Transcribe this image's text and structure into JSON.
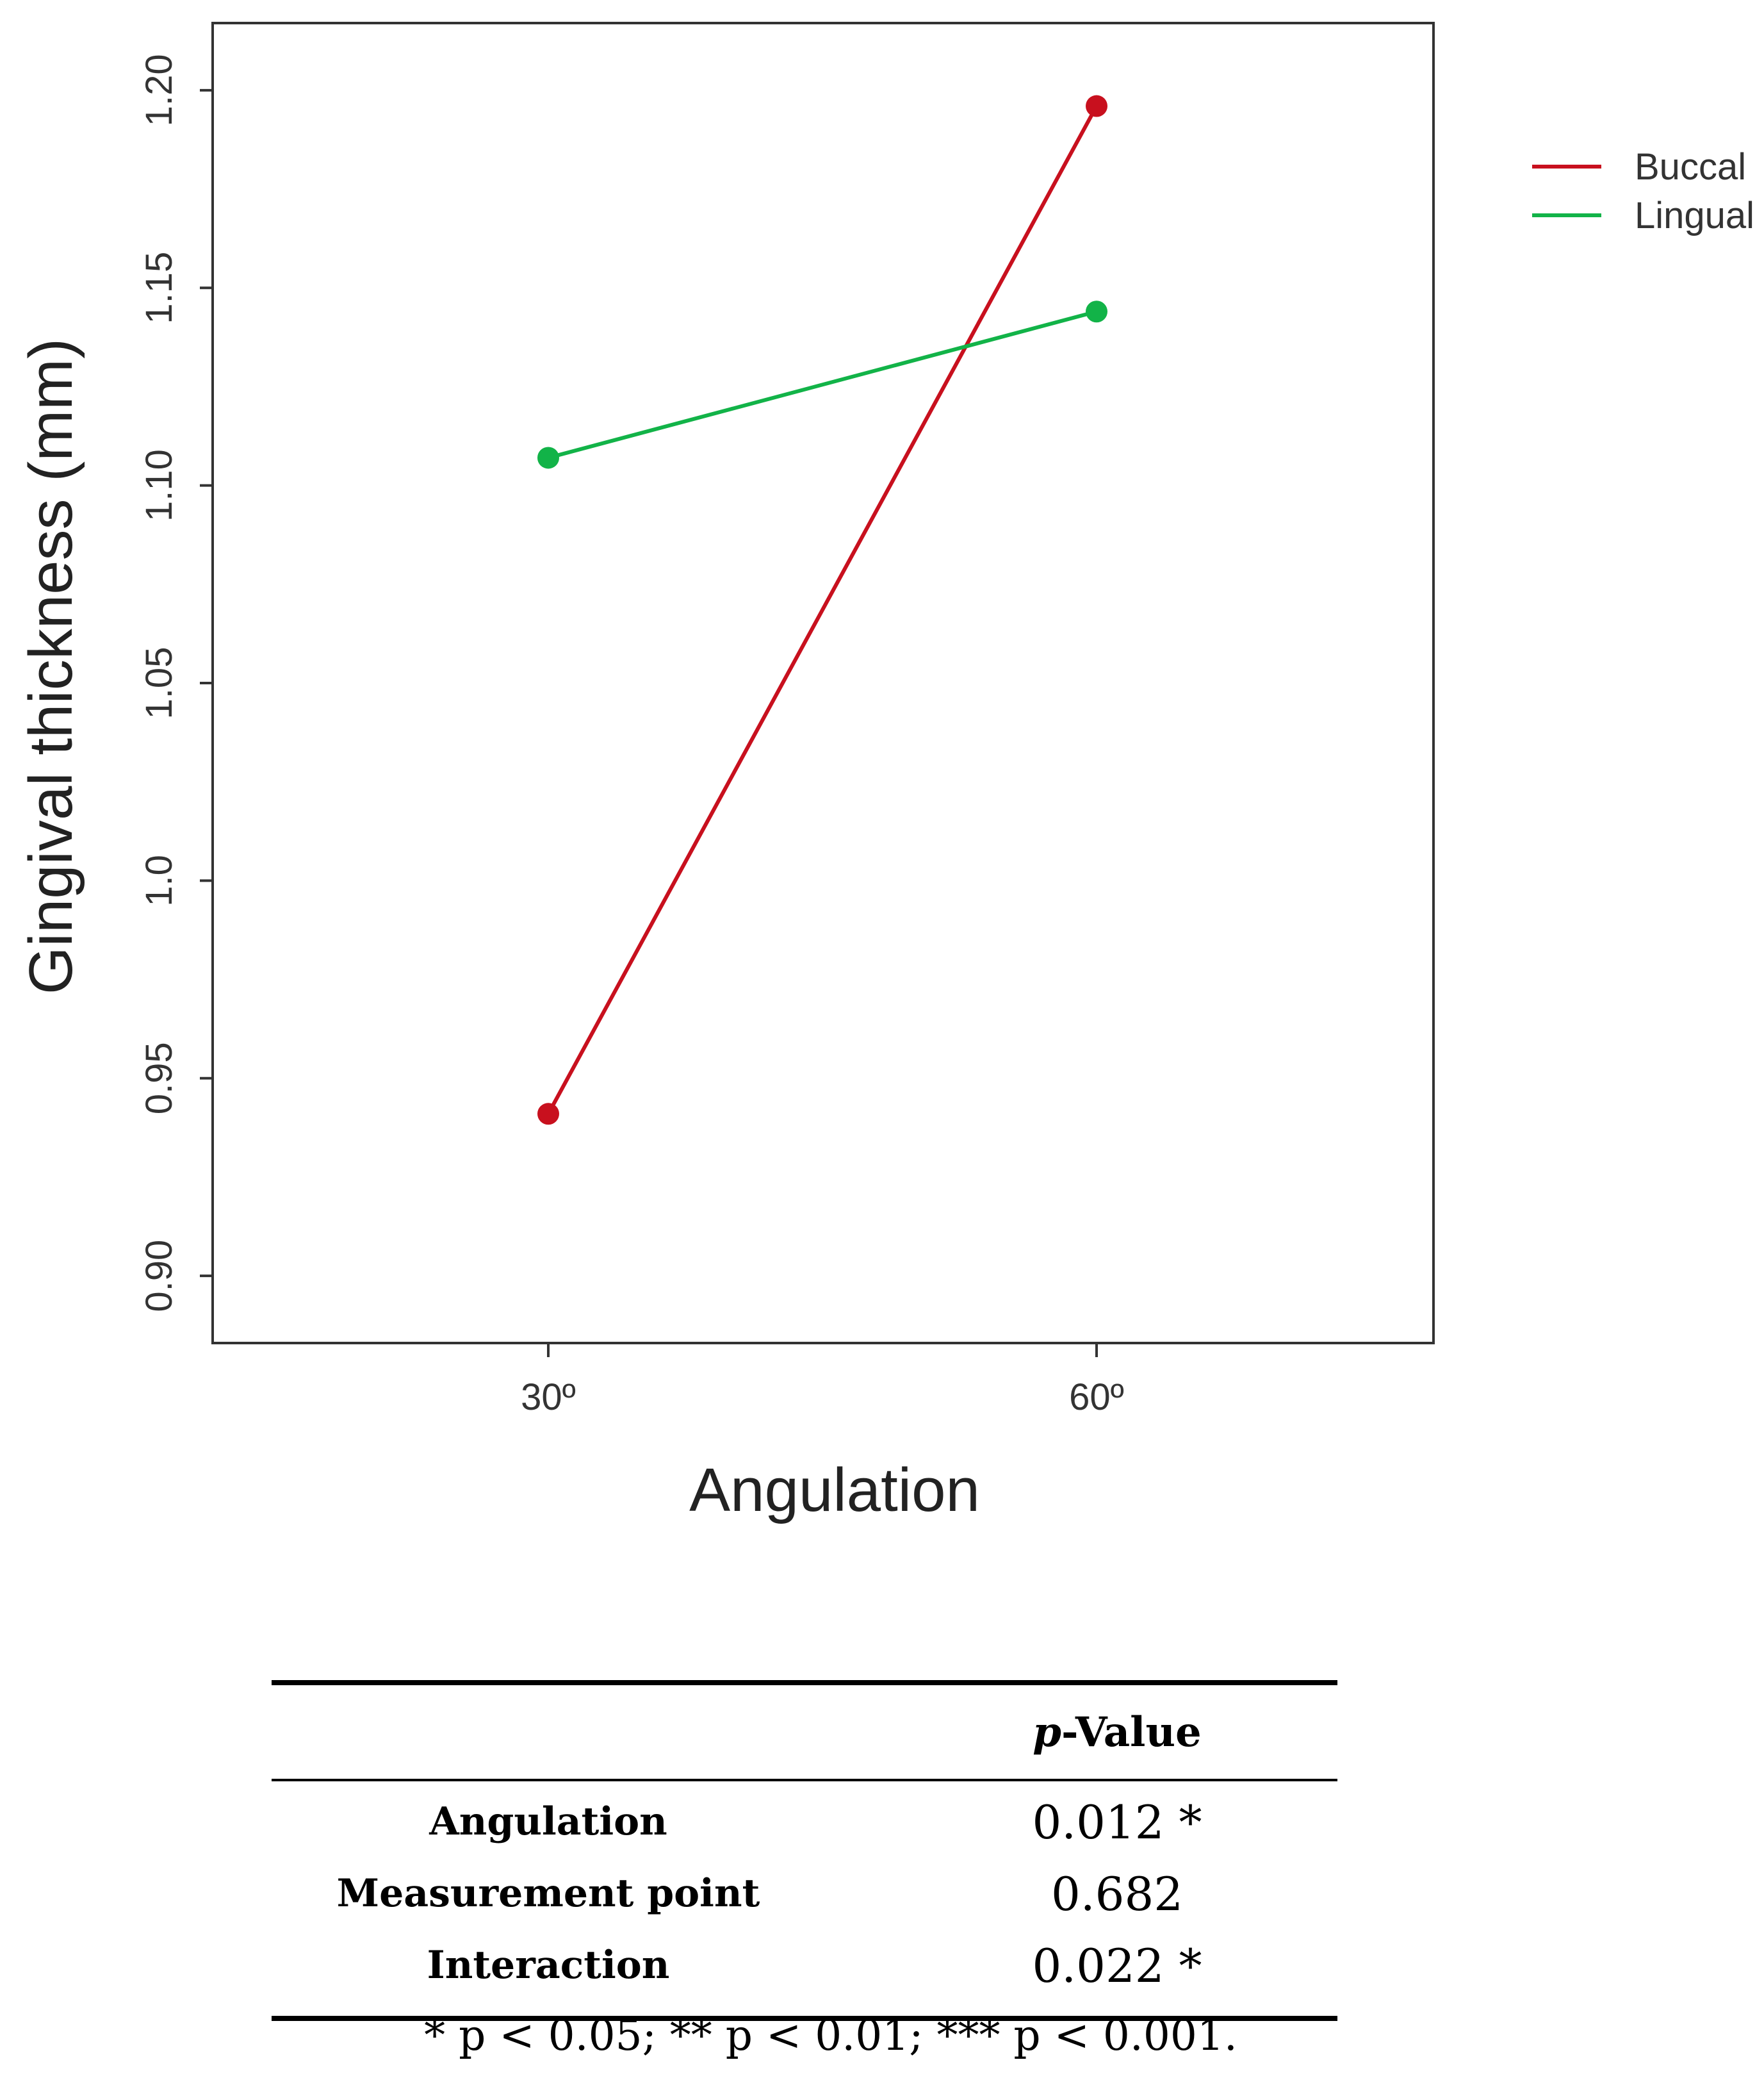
{
  "chart_data": {
    "type": "line",
    "categories": [
      "30º",
      "60º"
    ],
    "series": [
      {
        "name": "Buccal",
        "color": "#c8101e",
        "values": [
          0.941,
          1.196
        ]
      },
      {
        "name": "Lingual",
        "color": "#12b348",
        "values": [
          1.107,
          1.144
        ]
      }
    ],
    "yticks": [
      0.9,
      0.95,
      1.0,
      1.05,
      1.1,
      1.15,
      1.2
    ],
    "ytick_labels": [
      "0.90",
      "0.95",
      "1.0",
      "1.05",
      "1.10",
      "1.15",
      "1.20"
    ],
    "ylim": [
      0.883,
      1.217
    ],
    "xlabel": "Angulation",
    "ylabel": "Gingival thickness (mm)",
    "grid": false,
    "legend_position": "top-right, outside plot"
  },
  "table": {
    "header_italic": "p",
    "header_rest": "-Value",
    "rows": [
      {
        "label": "Angulation",
        "value": "0.012 *"
      },
      {
        "label": "Measurement point",
        "value": "0.682"
      },
      {
        "label": "Interaction",
        "value": "0.022 *"
      }
    ]
  },
  "footnote": "* p < 0.05; ** p < 0.01; *** p < 0.001."
}
